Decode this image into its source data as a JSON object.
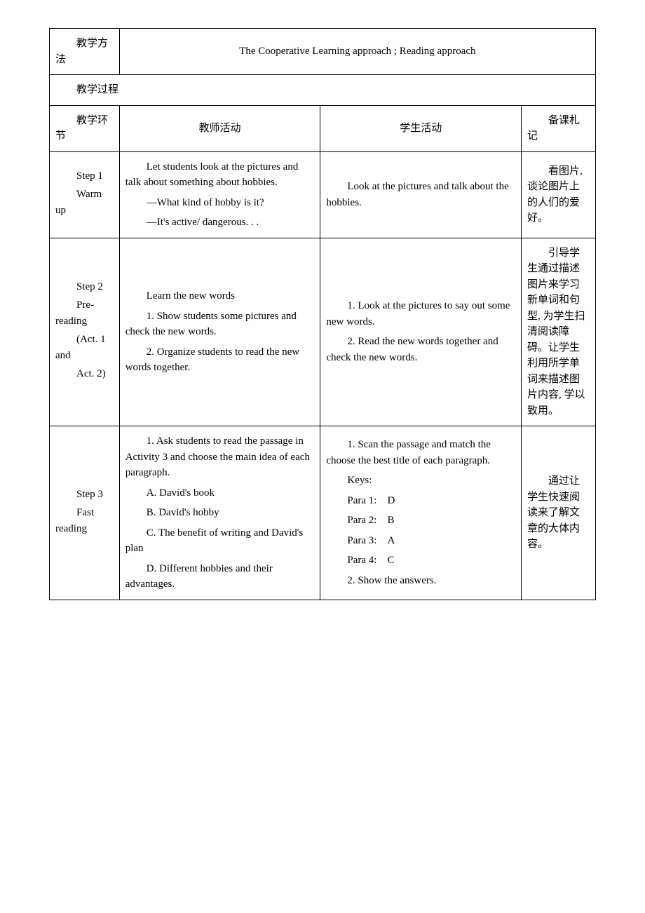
{
  "row1": {
    "label": "教学方法",
    "content": "The Cooperative Learning approach ; Reading approach"
  },
  "row2": {
    "label": "教学过程"
  },
  "headers": {
    "col1": "教学环节",
    "col2": "教师活动",
    "col3": "学生活动",
    "col4": "备课札记"
  },
  "step1": {
    "name_l1": "Step 1",
    "name_l2": "Warm up",
    "teacher_p1": "Let students look at the pictures and talk about something about hobbies.",
    "teacher_p2": "—What kind of hobby is it?",
    "teacher_p3": "—It's active/ dangerous. . .",
    "student_p1": "Look at the pictures and talk about the hobbies.",
    "notes": "看图片, 谈论图片上的人们的爱好。"
  },
  "step2": {
    "name_l1": "Step 2",
    "name_l2": "Pre-reading",
    "name_l3": "(Act. 1 and",
    "name_l4": "Act. 2)",
    "teacher_p1": "Learn the new words",
    "teacher_p2": "1. Show students some pictures and check the new words.",
    "teacher_p3": "2. Organize students to read the new words together.",
    "student_p1": "1. Look at the pictures to say out some new words.",
    "student_p2": "2. Read the new words together and check the new words.",
    "notes": "引导学生通过描述图片来学习新单词和句型, 为学生扫清阅读障碍。让学生利用所学单词来描述图片内容, 学以致用。"
  },
  "step3": {
    "name_l1": "Step 3",
    "name_l2": "Fast reading",
    "teacher_p1": "1. Ask students to read the passage in Activity 3 and choose the main idea of each paragraph.",
    "teacher_p2": "A. David's book",
    "teacher_p3": "B. David's hobby",
    "teacher_p4": "C. The benefit of writing and David's plan",
    "teacher_p5": "D. Different hobbies and their advantages.",
    "student_p1": "1. Scan the passage and match the choose the best title of each paragraph.",
    "student_p2": "Keys:",
    "student_p3": "Para 1:    D",
    "student_p4": "Para 2:    B",
    "student_p5": "Para 3:    A",
    "student_p6": "Para 4:    C",
    "student_p7": "2. Show the answers.",
    "notes": "通过让学生快速阅读来了解文章的大体内容。"
  }
}
